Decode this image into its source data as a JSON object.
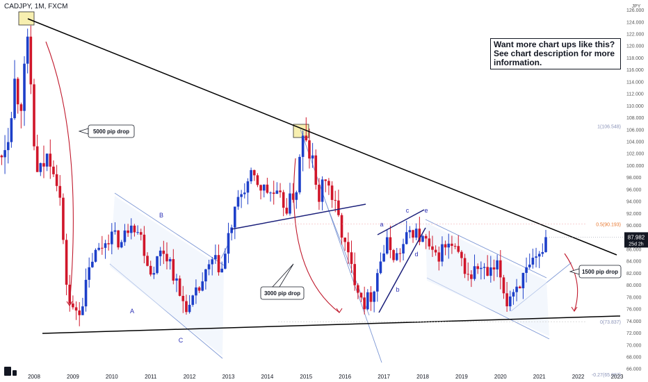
{
  "header": {
    "symbol_title": "CADJPY, 1M, FXCM"
  },
  "promo": {
    "text": "Want more chart ups like this? See chart description for more information."
  },
  "colors": {
    "up": "#1d3fc9",
    "down": "#d0162a",
    "trendline": "#000000",
    "channel": "#7b96d4",
    "arrow": "#c0192c",
    "price_axis": "#555555",
    "fib": "#f23645",
    "current": "#131722",
    "wave_label": "#2a2fb5",
    "highlight_box": "#f7efb0"
  },
  "chart_data": {
    "type": "candlestick",
    "title": "CADJPY, 1M, FXCM",
    "x_tick_labels": [
      "2008",
      "2009",
      "2010",
      "2011",
      "2012",
      "2013",
      "2014",
      "2015",
      "2016",
      "2017",
      "2018",
      "2019",
      "2020",
      "2021",
      "2022",
      "2023"
    ],
    "y_tick_labels": [
      "66.000",
      "68.000",
      "70.000",
      "72.000",
      "74.000",
      "76.000",
      "78.000",
      "80.000",
      "82.000",
      "84.000",
      "86.000",
      "88.000",
      "90.000",
      "92.000",
      "94.000",
      "96.000",
      "98.000",
      "100.000",
      "102.000",
      "104.000",
      "106.000",
      "108.000",
      "110.000",
      "112.000",
      "114.000",
      "116.000",
      "118.000",
      "120.000",
      "122.000",
      "124.000",
      "126.000"
    ],
    "y_range": [
      65.5,
      127.4
    ],
    "y_unit": "JPY",
    "price_path_years": [
      2007.0,
      2007.3,
      2007.5,
      2007.65,
      2007.85,
      2008.05,
      2008.4,
      2008.65,
      2008.8,
      2008.95,
      2009.2,
      2009.5,
      2009.7,
      2009.95,
      2010.25,
      2010.5,
      2010.75,
      2011.0,
      2011.3,
      2011.5,
      2011.75,
      2012.0,
      2012.3,
      2012.6,
      2012.85,
      2013.0,
      2013.3,
      2013.6,
      2013.9,
      2014.2,
      2014.5,
      2014.75,
      2014.9,
      2015.15,
      2015.3,
      2015.5,
      2015.65,
      2015.8,
      2016.0,
      2016.2,
      2016.5,
      2016.7,
      2016.9,
      2017.1,
      2017.3,
      2017.5,
      2017.7,
      2017.9,
      2018.1,
      2018.3,
      2018.5,
      2018.7,
      2018.95,
      2019.2,
      2019.4,
      2019.7,
      2019.95,
      2020.15,
      2020.3,
      2020.5,
      2020.75,
      2021.0,
      2021.15
    ],
    "price_path_close": [
      100.5,
      104.0,
      114.0,
      110.0,
      120.5,
      98.0,
      102.0,
      96.0,
      82.0,
      75.5,
      76.0,
      84.5,
      86.0,
      88.5,
      87.0,
      91.0,
      88.0,
      82.0,
      86.0,
      84.0,
      78.0,
      76.0,
      80.0,
      84.0,
      82.5,
      88.0,
      95.0,
      98.0,
      96.0,
      95.0,
      93.0,
      96.0,
      104.5,
      101.0,
      94.0,
      98.0,
      95.0,
      92.0,
      86.5,
      82.0,
      77.0,
      78.5,
      84.0,
      87.0,
      84.5,
      86.5,
      89.5,
      88.0,
      87.0,
      84.0,
      86.0,
      86.5,
      84.5,
      81.0,
      83.0,
      81.5,
      83.0,
      77.0,
      79.0,
      80.5,
      82.5,
      84.5,
      87.98
    ],
    "current_price": {
      "label": "87.982",
      "time_left": "25d 2h",
      "value": 87.982
    },
    "fibonacci_levels": [
      {
        "label": "1(106.548)",
        "value": 106.548
      },
      {
        "label": "0.5(90.193)",
        "value": 90.193
      },
      {
        "label": "0(73.837)",
        "value": 73.837
      },
      {
        "label": "-0.27(65.007)",
        "value": 65.007
      }
    ],
    "annotations": [
      {
        "text": "5000 pip drop"
      },
      {
        "text": "3000 pip drop"
      },
      {
        "text": "1500 pip drop"
      }
    ],
    "wave_labels": [
      "A",
      "B",
      "C",
      "a",
      "b",
      "c",
      "d",
      "e"
    ],
    "grid": false
  }
}
